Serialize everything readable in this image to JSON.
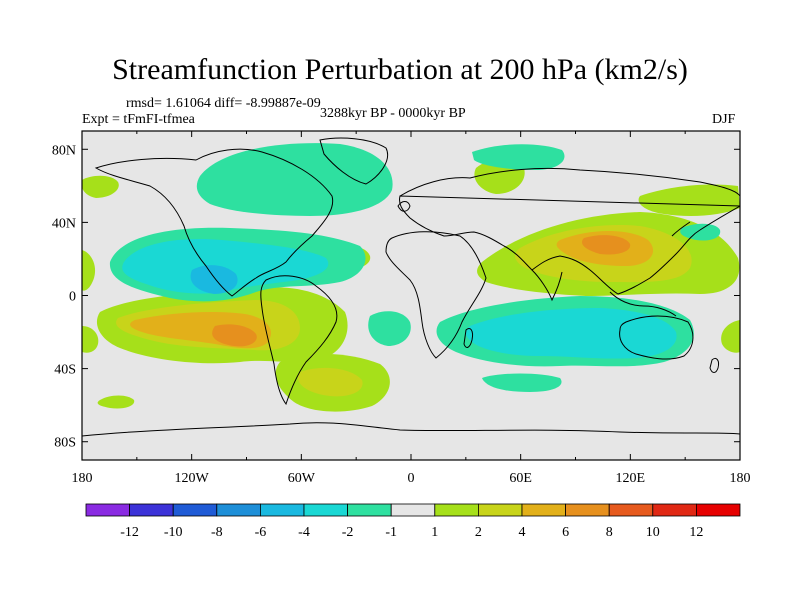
{
  "title": "Streamfunction Perturbation at 200 hPa (km2/s)",
  "stats": "rmsd= 1.61064 diff= -8.99887e-09",
  "experiment": "Expt = tFmFI-tfmea",
  "period": "3288kyr BP - 0000kyr BP",
  "season": "DJF",
  "axes": {
    "lat_ticks": [
      "80N",
      "40N",
      "0",
      "40S",
      "80S"
    ],
    "lon_ticks": [
      "180",
      "120W",
      "60W",
      "0",
      "60E",
      "120E",
      "180"
    ]
  },
  "legend": {
    "labels": [
      "-12",
      "-10",
      "-8",
      "-6",
      "-4",
      "-2",
      "-1",
      "1",
      "2",
      "4",
      "6",
      "8",
      "10",
      "12"
    ],
    "colors": [
      "#8a2be2",
      "#3c32d8",
      "#1f5bd6",
      "#1e8fd8",
      "#1ab9e0",
      "#1ad8d4",
      "#2ee0a0",
      "#e6e6e6",
      "#a6e01a",
      "#c8d41a",
      "#e2b01a",
      "#e6901e",
      "#e65a1e",
      "#e02814",
      "#e60000"
    ]
  }
}
